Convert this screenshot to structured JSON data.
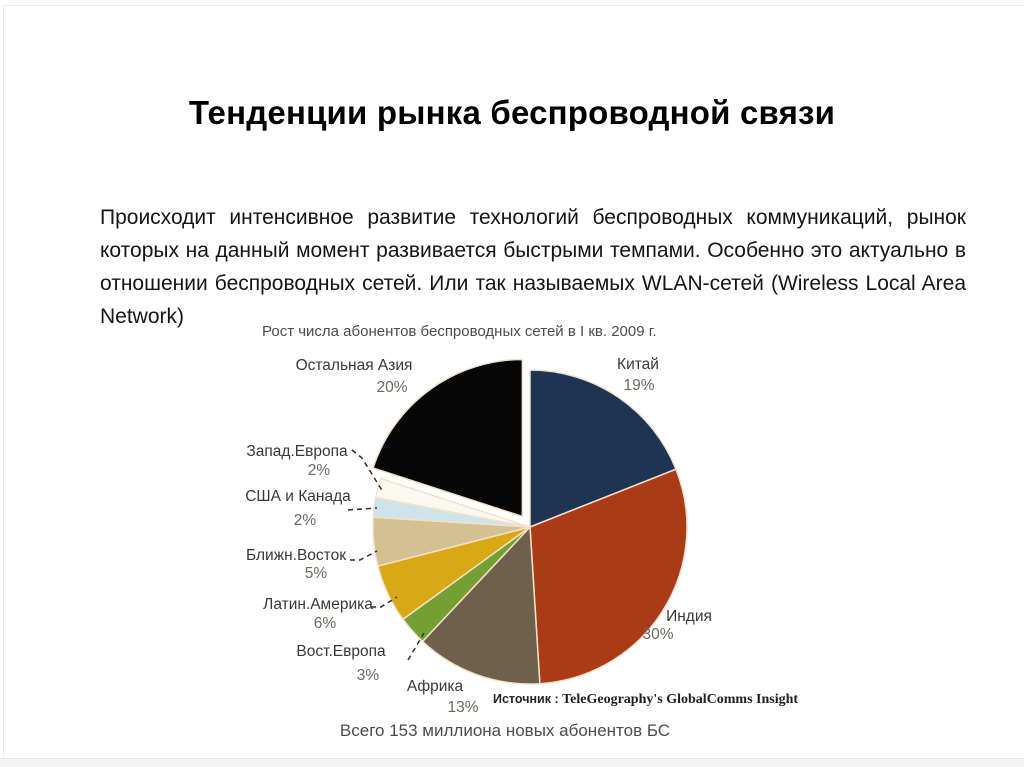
{
  "slide": {
    "title": "Тенденции рынка беспроводной связи",
    "paragraph": "Происходит интенсивное развитие технологий беспроводных коммуникаций, рынок которых на данный момент развивается быстрыми темпами. Особенно это актуально в отношении беспроводных сетей. Или так называемых WLAN-сетей (Wireless Local Area Network)"
  },
  "chart_data": {
    "type": "pie",
    "title": "Рост числа абонентов беспроводных сетей в I кв. 2009 г.",
    "caption": "Всего 153 миллиона новых абонентов БС",
    "source_label": "Источник :",
    "source_value": "TeleGeography's GlobalComms Insight",
    "unit": "%",
    "total": 100,
    "start_angle": "12 o'clock, clockwise",
    "legend_position": "callout-labels",
    "slices": [
      {
        "label": "Китай",
        "value": 19,
        "pct_text": "19%",
        "color": "#1d3452",
        "exploded": false
      },
      {
        "label": "Индия",
        "value": 30,
        "pct_text": "30%",
        "color": "#ab3a17",
        "exploded": false
      },
      {
        "label": "Африка",
        "value": 13,
        "pct_text": "13%",
        "color": "#6f604b",
        "exploded": false
      },
      {
        "label": "Вост.Европа",
        "value": 3,
        "pct_text": "3%",
        "color": "#74a033",
        "exploded": false
      },
      {
        "label": "Латин.Америка",
        "value": 6,
        "pct_text": "6%",
        "color": "#d9a816",
        "exploded": false
      },
      {
        "label": "Ближн.Восток",
        "value": 5,
        "pct_text": "5%",
        "color": "#d5c092",
        "exploded": false
      },
      {
        "label": "США и Канада",
        "value": 2,
        "pct_text": "2%",
        "color": "#cfe3eb",
        "exploded": false
      },
      {
        "label": "Запад.Европа",
        "value": 2,
        "pct_text": "2%",
        "color": "#faf8f0",
        "exploded": false
      },
      {
        "label": "Остальная Азия",
        "value": 20,
        "pct_text": "20%",
        "color": "#060606",
        "exploded": true
      }
    ],
    "pie_stroke_color": "#f4e1cb"
  }
}
